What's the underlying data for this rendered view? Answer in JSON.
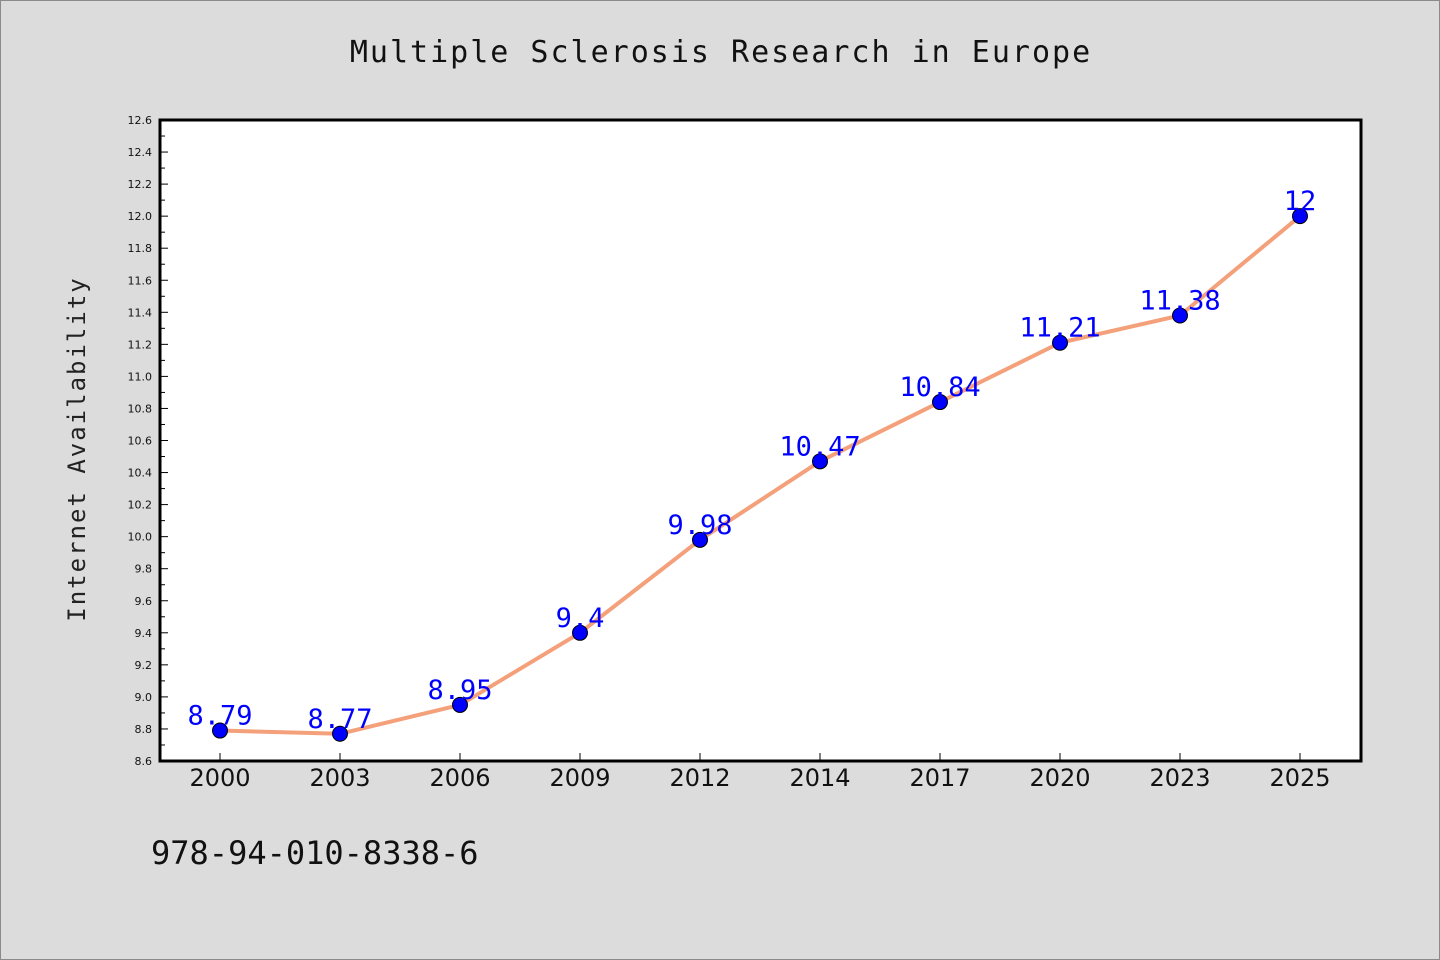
{
  "chart_data": {
    "type": "line",
    "title": "Multiple Sclerosis Research in Europe",
    "xlabel": "",
    "ylabel": "Internet Availability",
    "categories": [
      "2000",
      "2003",
      "2006",
      "2009",
      "2012",
      "2014",
      "2017",
      "2020",
      "2023",
      "2025"
    ],
    "values": [
      8.79,
      8.77,
      8.95,
      9.4,
      9.98,
      10.47,
      10.84,
      11.21,
      11.38,
      12
    ],
    "data_labels": [
      "8.79",
      "8.77",
      "8.95",
      "9.4",
      "9.98",
      "10.47",
      "10.84",
      "11.21",
      "11.38",
      "12"
    ],
    "ylim": [
      8.6,
      12.6
    ],
    "y_ticks": [
      "8.6",
      "8.8",
      "9.0",
      "9.2",
      "9.4",
      "9.6",
      "9.8",
      "10.0",
      "10.2",
      "10.4",
      "10.6",
      "10.8",
      "11.0",
      "11.2",
      "11.4",
      "11.6",
      "11.8",
      "12.0",
      "12.2",
      "12.4",
      "12.6"
    ],
    "grid": false,
    "legend": "none",
    "line_color": "#f4a07a",
    "marker_color": "#0000ff",
    "label_color": "#0000ff"
  },
  "footer": {
    "isbn": "978-94-010-8338-6"
  }
}
